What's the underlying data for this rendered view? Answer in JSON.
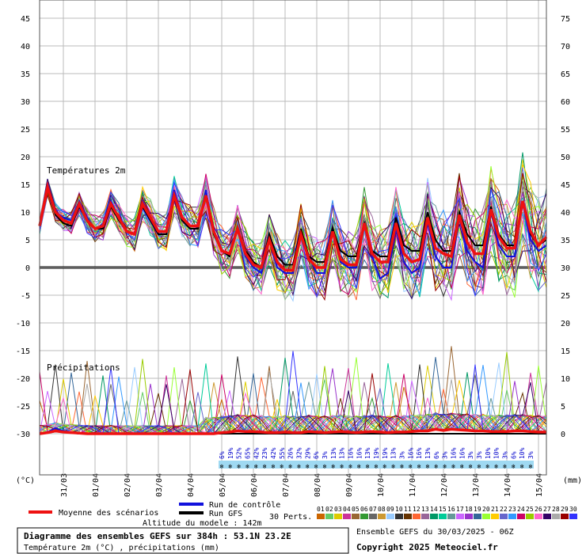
{
  "chart_data": {
    "type": "line",
    "title": "Diagramme des ensembles GEFS sur 384h : 53.1N 23.2E",
    "subtitle": "Température 2m (°C) , précipitations (mm)",
    "run_info": "Ensemble GEFS du 30/03/2025 - 06Z",
    "copyright": "Copyright 2025 Meteociel.fr",
    "altitude": "Altitude du modele : 142m",
    "panel_temp_label": "Températures 2m",
    "panel_precip_label": "Précipitations",
    "left_unit": "(°C)",
    "right_unit": "(mm)",
    "left_ticks": [
      "45",
      "40",
      "35",
      "30",
      "25",
      "20",
      "15",
      "10",
      "5",
      "0",
      "-5",
      "-10",
      "-15",
      "-20",
      "-25",
      "-30"
    ],
    "right_ticks": [
      "75",
      "70",
      "65",
      "60",
      "55",
      "50",
      "45",
      "40",
      "35",
      "30",
      "25",
      "20",
      "15",
      "10",
      "5",
      "0"
    ],
    "ylim_temp": [
      -30,
      45
    ],
    "ylim_precip": [
      0,
      75
    ],
    "x_range_hours": [
      0,
      384
    ],
    "date_labels": [
      "31/03",
      "01/04",
      "02/04",
      "03/04",
      "04/04",
      "05/04",
      "06/04",
      "07/04",
      "08/04",
      "09/04",
      "10/04",
      "11/04",
      "12/04",
      "13/04",
      "14/04",
      "15/04"
    ],
    "legend": {
      "mean": "Moyenne des scénarios",
      "control": "Run de contrôle",
      "gfs": "Run GFS",
      "perts": "30 Perts.",
      "member_numbers": [
        "01",
        "02",
        "03",
        "04",
        "05",
        "06",
        "07",
        "08",
        "09",
        "10",
        "11",
        "12",
        "13",
        "14",
        "15",
        "16",
        "17",
        "18",
        "19",
        "20",
        "21",
        "22",
        "23",
        "24",
        "25",
        "26",
        "27",
        "28",
        "29",
        "30"
      ]
    },
    "snow_percentages": [
      "6%",
      "19%",
      "52%",
      "65%",
      "42%",
      "23%",
      "42%",
      "55%",
      "26%",
      "32%",
      "29%",
      "6%",
      "3%",
      "13%",
      "13%",
      "16%",
      "16%",
      "13%",
      "19%",
      "19%",
      "13%",
      "3%",
      "16%",
      "16%",
      "13%",
      "6%",
      "3%",
      "16%",
      "16%",
      "3%",
      "3%",
      "10%",
      "10%",
      "3%",
      "6%",
      "10%",
      "3%"
    ],
    "series": [
      {
        "name": "Moyenne des scénarios",
        "hours": [
          0,
          6,
          12,
          18,
          24,
          30,
          36,
          42,
          48,
          54,
          60,
          66,
          72,
          78,
          84,
          90,
          96,
          102,
          108,
          114,
          120,
          126,
          132,
          138,
          144,
          150,
          156,
          162,
          168,
          174,
          180,
          186,
          192,
          198,
          204,
          210,
          216,
          222,
          228,
          234,
          240,
          246,
          252,
          258,
          264,
          270,
          276,
          282,
          288,
          294,
          300,
          306,
          312,
          318,
          324,
          330,
          336,
          342,
          348,
          354,
          360,
          366,
          372,
          378,
          384
        ],
        "temp": [
          7.5,
          14.5,
          10,
          8.5,
          8,
          11.5,
          8.5,
          7,
          7.5,
          11.5,
          9,
          6.5,
          6,
          11.5,
          9,
          6.5,
          6.5,
          13,
          9,
          7.5,
          7.5,
          13,
          6.5,
          3,
          2.5,
          7,
          2.5,
          0.5,
          0,
          5,
          1,
          -0.5,
          -0.5,
          6,
          1.5,
          0,
          0,
          6.5,
          1.5,
          0.5,
          0.5,
          8,
          2.5,
          1,
          1,
          8,
          2.5,
          1,
          1.5,
          9,
          3.5,
          2.5,
          2,
          9.5,
          4.5,
          2.5,
          2.5,
          10.5,
          5.5,
          3.5,
          3.5,
          12,
          6.5,
          4,
          5.5
        ],
        "precip": [
          0,
          0.2,
          0.5,
          0.3,
          0.2,
          0.1,
          0,
          0,
          0,
          0,
          0,
          0,
          0,
          0,
          0,
          0,
          0,
          0,
          0,
          0,
          0,
          0,
          0,
          0.2,
          0.3,
          0.5,
          0.4,
          0.4,
          0.3,
          0.2,
          0.2,
          0.3,
          0.2,
          0.2,
          0.4,
          0.3,
          0.2,
          0.3,
          0.4,
          0.3,
          0.2,
          0.3,
          0.4,
          0.3,
          0.2,
          0.3,
          0.3,
          0.4,
          0.5,
          0.5,
          0.8,
          0.6,
          0.8,
          0.7,
          0.6,
          0.5,
          0.5,
          0.4,
          0.4,
          0.4,
          0.5,
          0.5,
          0.4,
          0.3,
          0.3
        ]
      },
      {
        "name": "Run de contrôle",
        "hours": [
          0,
          6,
          12,
          18,
          24,
          30,
          36,
          42,
          48,
          54,
          60,
          66,
          72,
          78,
          84,
          90,
          96,
          102,
          108,
          114,
          120,
          126,
          132,
          138,
          144,
          150,
          156,
          162,
          168,
          174,
          180,
          186,
          192,
          198,
          204,
          210,
          216,
          222,
          228,
          234,
          240,
          246,
          252,
          258,
          264,
          270,
          276,
          282,
          288,
          294,
          300,
          306,
          312,
          318,
          324,
          330,
          336,
          342,
          348,
          354,
          360,
          366,
          372,
          378,
          384
        ],
        "temp": [
          7.5,
          15,
          10,
          9,
          8.5,
          12,
          9,
          7,
          7,
          12,
          9,
          6.5,
          6,
          12,
          9,
          6,
          6,
          14,
          9,
          7,
          7,
          14,
          6,
          3,
          2.5,
          7,
          2,
          0,
          -1,
          5,
          0,
          -1,
          -1,
          6,
          2,
          -1,
          -1,
          7,
          1,
          0,
          0,
          8,
          2,
          -2,
          -1,
          7,
          1,
          -1,
          0,
          8,
          2,
          0,
          0,
          9,
          3,
          1,
          0,
          10,
          4,
          2,
          2,
          12,
          5,
          3,
          4
        ],
        "precip": [
          0,
          0.3,
          1,
          0.5,
          0.2,
          0,
          0,
          0,
          0,
          0,
          0,
          0,
          0,
          0,
          0,
          0,
          0,
          0,
          0,
          0,
          0,
          0,
          0,
          0,
          0,
          0,
          0,
          0,
          0,
          0,
          0,
          0,
          0,
          0,
          0,
          0,
          0,
          0,
          0,
          0,
          0,
          0,
          0,
          0,
          0,
          0,
          0,
          0,
          0,
          0,
          0,
          0,
          0,
          0,
          0,
          0,
          0,
          0,
          0,
          0,
          0,
          0,
          0,
          0,
          0
        ]
      },
      {
        "name": "Run GFS",
        "hours": [
          0,
          6,
          12,
          18,
          24,
          30,
          36,
          42,
          48,
          54,
          60,
          66,
          72,
          78,
          84,
          90,
          96,
          102,
          108,
          114,
          120,
          126,
          132,
          138,
          144,
          150,
          156,
          162,
          168,
          174,
          180,
          186,
          192,
          198,
          204,
          210,
          216,
          222,
          228,
          234,
          240,
          246,
          252,
          258,
          264,
          270,
          276,
          282,
          288,
          294,
          300,
          306,
          312,
          318,
          324,
          330,
          336,
          342,
          348,
          354,
          360,
          366,
          372,
          378,
          384
        ],
        "temp": [
          7.5,
          14,
          9.5,
          8,
          7.5,
          11,
          8.5,
          7,
          7,
          11,
          8.5,
          6.5,
          6,
          11,
          8.5,
          6,
          6,
          13,
          8.5,
          7,
          7,
          13,
          6,
          3,
          2,
          7,
          3,
          1,
          0,
          6,
          2,
          0.5,
          0.5,
          7,
          2,
          1,
          1,
          7,
          3,
          2,
          2,
          8,
          3,
          2,
          2,
          9,
          4,
          3,
          3,
          10,
          5,
          3,
          3,
          10,
          6,
          4,
          4,
          11,
          6,
          4,
          4,
          12,
          6,
          4,
          5
        ],
        "precip": [
          0,
          0.2,
          0.4,
          0.3,
          0.2,
          0,
          0,
          0,
          0,
          0,
          0,
          0,
          0,
          0,
          0,
          0,
          0,
          0,
          0,
          0,
          0,
          0,
          0,
          0,
          0,
          0,
          0,
          0,
          0,
          0,
          0,
          0,
          0,
          0,
          0,
          0,
          0,
          0,
          0,
          0,
          0,
          0,
          0,
          0,
          0,
          0,
          0,
          0,
          0,
          0,
          0,
          0,
          0,
          0,
          0,
          0,
          0,
          0,
          0,
          0,
          0,
          0,
          0,
          0,
          0
        ]
      }
    ],
    "colors": {
      "mean": "#ee1111",
      "control": "#1111dd",
      "gfs": "#000000",
      "grid": "#bbbbbb",
      "snow": "#9fd9f2",
      "members": [
        "#cc6600",
        "#66cc66",
        "#ddcc00",
        "#cc3399",
        "#996633",
        "#339933",
        "#666666",
        "#cc9933",
        "#99ccff",
        "#333333",
        "#663300",
        "#ff6633",
        "#996699",
        "#009966",
        "#00cc99",
        "#669999",
        "#cc66ff",
        "#9933cc",
        "#336699",
        "#99ff33",
        "#ffcc00",
        "#6666cc",
        "#3399ff",
        "#cc0066",
        "#99cc00",
        "#ff66cc",
        "#330066",
        "#aaaaaa",
        "#990000",
        "#3333ff"
      ]
    }
  }
}
